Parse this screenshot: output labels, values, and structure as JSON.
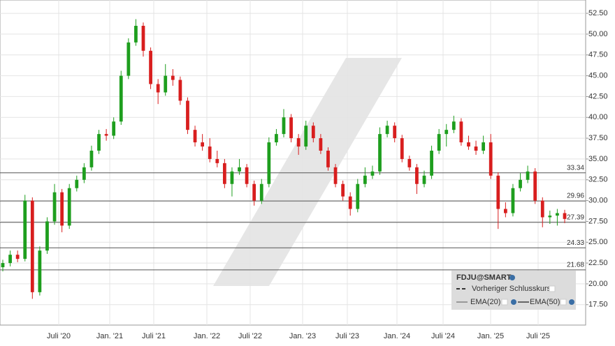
{
  "chart_data": {
    "type": "candlestick",
    "candles": [
      [
        22,
        22.9,
        21.5,
        22.5
      ],
      [
        22.5,
        24,
        22.1,
        23.5
      ],
      [
        23.5,
        24,
        22.6,
        23
      ],
      [
        23,
        30.7,
        22.7,
        30
      ],
      [
        30,
        30.4,
        18.2,
        19
      ],
      [
        19,
        24.5,
        18.6,
        24
      ],
      [
        24,
        28,
        23.6,
        27.5
      ],
      [
        27.5,
        32,
        27.1,
        31
      ],
      [
        31,
        31.4,
        26.2,
        27
      ],
      [
        27,
        32,
        26.6,
        31.5
      ],
      [
        31.5,
        33,
        31.1,
        32.5
      ],
      [
        32.5,
        34.5,
        32.1,
        34
      ],
      [
        34,
        36.6,
        33.6,
        36
      ],
      [
        36,
        38.5,
        35.6,
        38
      ],
      [
        38,
        38.6,
        37.2,
        37.8
      ],
      [
        37.8,
        40,
        37.4,
        39.5
      ],
      [
        39.5,
        45.6,
        39.1,
        45
      ],
      [
        45,
        49.5,
        44.6,
        49
      ],
      [
        49,
        51.8,
        48.6,
        51
      ],
      [
        51,
        51.4,
        47.3,
        48
      ],
      [
        48,
        48.4,
        43.4,
        44
      ],
      [
        44,
        44.6,
        41.6,
        43
      ],
      [
        43,
        46.4,
        42.6,
        45
      ],
      [
        45,
        45.8,
        43.8,
        44.5
      ],
      [
        44.5,
        44.9,
        41.5,
        42
      ],
      [
        42,
        42.4,
        38,
        38.5
      ],
      [
        38.5,
        39,
        36.5,
        37
      ],
      [
        37,
        38,
        36,
        36.5
      ],
      [
        36.5,
        37.5,
        34.6,
        35
      ],
      [
        35,
        36,
        34,
        34.5
      ],
      [
        34.5,
        35,
        31.5,
        32
      ],
      [
        32,
        34,
        30.5,
        33.5
      ],
      [
        33.5,
        35,
        33.1,
        34
      ],
      [
        34,
        34.4,
        31.6,
        32
      ],
      [
        32,
        32.4,
        29.4,
        30
      ],
      [
        30,
        32.6,
        29.6,
        32
      ],
      [
        32,
        37.6,
        31.6,
        37
      ],
      [
        37,
        38.6,
        36.6,
        38
      ],
      [
        38,
        41,
        37.6,
        40
      ],
      [
        40,
        40.4,
        37,
        37.5
      ],
      [
        37.5,
        38,
        35.5,
        36.5
      ],
      [
        36.5,
        39.6,
        36.1,
        39
      ],
      [
        39,
        39.4,
        37,
        37.5
      ],
      [
        37.5,
        38,
        35.6,
        36
      ],
      [
        36,
        36.4,
        33.6,
        34
      ],
      [
        34,
        34.4,
        31.6,
        32
      ],
      [
        32,
        32.4,
        30,
        30.5
      ],
      [
        30.5,
        31,
        28.2,
        29
      ],
      [
        29,
        32.6,
        28.6,
        32
      ],
      [
        32,
        34,
        31.6,
        33
      ],
      [
        33,
        34.2,
        32.6,
        33.5
      ],
      [
        33.5,
        38.8,
        33.1,
        38
      ],
      [
        38,
        39.6,
        37.6,
        39
      ],
      [
        39,
        39.4,
        37,
        37.5
      ],
      [
        37.5,
        37.9,
        34.6,
        35
      ],
      [
        35,
        35.4,
        33.6,
        34
      ],
      [
        34,
        34.4,
        30.8,
        32
      ],
      [
        32,
        33.6,
        31.6,
        33
      ],
      [
        33,
        36.6,
        32.6,
        36
      ],
      [
        36,
        38.6,
        35.6,
        38
      ],
      [
        38,
        39.2,
        36.5,
        38.5
      ],
      [
        38.5,
        40.2,
        38.1,
        39.5
      ],
      [
        39.5,
        39.9,
        36.6,
        37
      ],
      [
        37,
        37.8,
        36.1,
        36.5
      ],
      [
        36.5,
        37.2,
        35.5,
        36
      ],
      [
        36,
        37.8,
        35.6,
        37
      ],
      [
        37,
        38,
        32.6,
        33
      ],
      [
        33,
        33.4,
        26.6,
        29
      ],
      [
        29,
        29.8,
        28,
        28.5
      ],
      [
        28.5,
        32,
        28.1,
        31.5
      ],
      [
        31.5,
        33.3,
        31.1,
        32.5
      ],
      [
        32.5,
        34.2,
        32.1,
        33.5
      ],
      [
        33.5,
        33.9,
        29.6,
        30
      ],
      [
        30,
        30.4,
        26.8,
        28
      ],
      [
        28,
        28.8,
        27.2,
        28.2
      ],
      [
        28.2,
        29,
        27,
        28.5
      ],
      [
        28.5,
        28.9,
        27.3,
        27.8
      ]
    ],
    "up_color": "#1e9e1e",
    "down_color": "#d81e1e",
    "x_labels": [
      "Juli '20",
      "Jan. '21",
      "Juli '21",
      "Jan. '22",
      "Juli '22",
      "Jan. '23",
      "Juli '23",
      "Jan. '24",
      "Juli '24",
      "Jan. '25",
      "Juli '25"
    ],
    "ylim": [
      15.05,
      54.1
    ],
    "yticks": [
      {
        "value": 17.5,
        "label": "17.50"
      },
      {
        "value": 20,
        "label": "20.00"
      },
      {
        "value": 22.5,
        "label": "22.50"
      },
      {
        "value": 25,
        "label": "25.00"
      },
      {
        "value": 27.5,
        "label": "27.50"
      },
      {
        "value": 30,
        "label": "30.00"
      },
      {
        "value": 32.5,
        "label": "32.50"
      },
      {
        "value": 35,
        "label": "35.00"
      },
      {
        "value": 37.5,
        "label": "37.50"
      },
      {
        "value": 40,
        "label": "40.00"
      },
      {
        "value": 42.5,
        "label": "42.50"
      },
      {
        "value": 45,
        "label": "45.00"
      },
      {
        "value": 47.5,
        "label": "47.50"
      },
      {
        "value": 50,
        "label": "50.00"
      },
      {
        "value": 52.5,
        "label": "52.50"
      }
    ],
    "levels": [
      33.34,
      29.96,
      27.39,
      24.33,
      21.68
    ],
    "grid": true,
    "legend": {
      "title": "FDJU@SMART",
      "items": [
        "Vorheriger Schlusskurs",
        "EMA(20)",
        "EMA(50)"
      ]
    }
  }
}
